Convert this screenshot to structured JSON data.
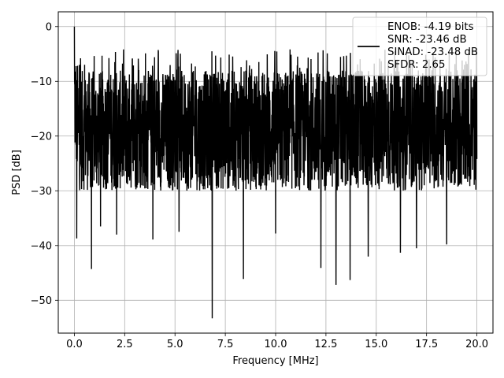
{
  "chart_data": {
    "type": "line",
    "xlabel": "Frequency [MHz]",
    "ylabel": "PSD [dB]",
    "xlim": [
      -0.8,
      20.8
    ],
    "ylim": [
      -56,
      2.7
    ],
    "x_ticks": [
      0.0,
      2.5,
      5.0,
      7.5,
      10.0,
      12.5,
      15.0,
      17.5,
      20.0
    ],
    "x_tick_labels": [
      "0.0",
      "2.5",
      "5.0",
      "7.5",
      "10.0",
      "12.5",
      "15.0",
      "17.5",
      "20.0"
    ],
    "y_ticks": [
      0,
      -10,
      -20,
      -30,
      -40,
      -50
    ],
    "y_tick_labels": [
      "0",
      "−10",
      "−20",
      "−30",
      "−40",
      "−50"
    ],
    "grid": true,
    "legend_position": "top-right",
    "legend_lines": [
      "ENOB: -4.19 bits",
      "SNR: -23.46 dB",
      "SINAD: -23.48 dB",
      "SFDR: 2.65"
    ],
    "series": [
      {
        "color": "#000000",
        "x_range": [
          0.0,
          20.0
        ],
        "noise_band": [
          -30,
          -8
        ],
        "peak": {
          "x": 0.0,
          "y": 0.0
        },
        "spikes": [
          {
            "x": 0.12,
            "y": -38.7
          },
          {
            "x": 0.85,
            "y": -44.3
          },
          {
            "x": 1.3,
            "y": -36.5
          },
          {
            "x": 2.1,
            "y": -38.0
          },
          {
            "x": 3.9,
            "y": -38.9
          },
          {
            "x": 5.2,
            "y": -37.5
          },
          {
            "x": 6.85,
            "y": -53.3
          },
          {
            "x": 8.4,
            "y": -46.1
          },
          {
            "x": 10.0,
            "y": -37.8
          },
          {
            "x": 12.25,
            "y": -44.1
          },
          {
            "x": 13.0,
            "y": -47.2
          },
          {
            "x": 13.7,
            "y": -46.3
          },
          {
            "x": 14.6,
            "y": -42.0
          },
          {
            "x": 16.2,
            "y": -41.3
          },
          {
            "x": 17.0,
            "y": -40.5
          },
          {
            "x": 18.5,
            "y": -39.8
          }
        ]
      }
    ]
  }
}
